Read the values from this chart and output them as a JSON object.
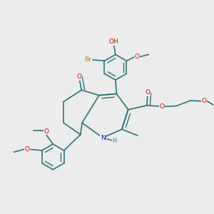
{
  "bg": "#ececec",
  "bc": "#2d7575",
  "oc": "#cc1100",
  "nc": "#0000cc",
  "brc": "#bb8800",
  "fs": 6.5,
  "lw": 1.2,
  "xlim": [
    -1.8,
    2.2
  ],
  "ylim": [
    -1.9,
    1.9
  ]
}
